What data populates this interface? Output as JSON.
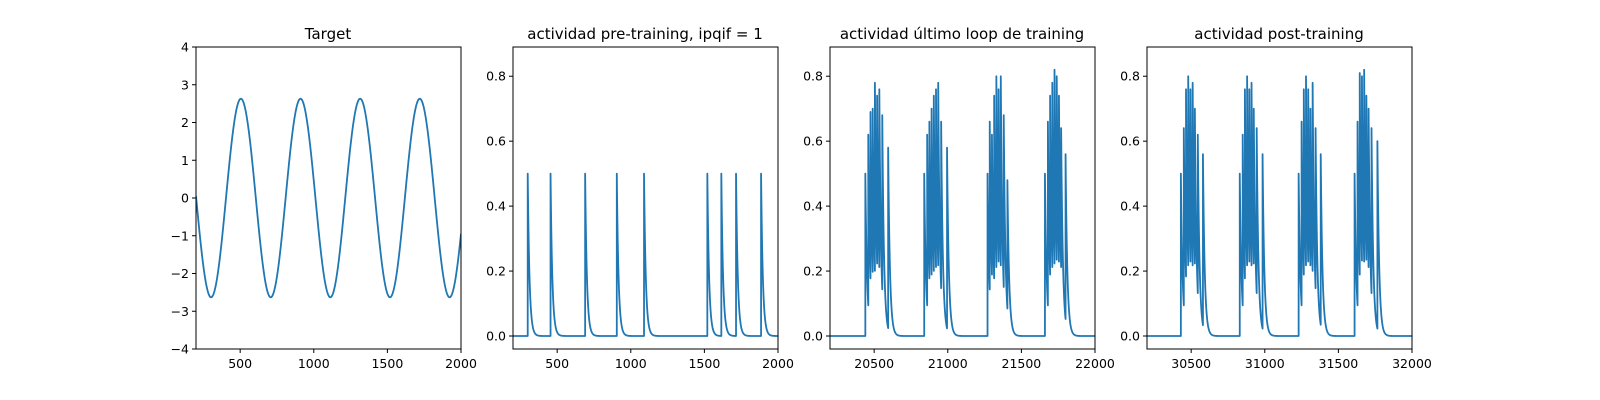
{
  "line_color": "#1f77b4",
  "chart_data": [
    {
      "type": "line",
      "title": "Target",
      "xlim": [
        200,
        2000
      ],
      "ylim": [
        -4,
        4
      ],
      "xticks": [
        500,
        1000,
        1500,
        2000
      ],
      "xtick_labels": [
        "500",
        "1000",
        "1500",
        "2000"
      ],
      "yticks": [
        -4,
        -3,
        -2,
        -1,
        0,
        1,
        2,
        3,
        4
      ],
      "ytick_labels": [
        "−4",
        "−3",
        "−2",
        "−1",
        "0",
        "1",
        "2",
        "3",
        "4"
      ],
      "series": [
        {
          "kind": "sine",
          "amplitude": 2.63,
          "period": 405,
          "first_peak_x": 505,
          "x_range": [
            200,
            2000
          ]
        }
      ]
    },
    {
      "type": "line",
      "title": "actividad pre-training, ipqif = 1",
      "xlim": [
        200,
        2000
      ],
      "ylim": [
        -0.04,
        0.89
      ],
      "xticks": [
        500,
        1000,
        1500,
        2000
      ],
      "xtick_labels": [
        "500",
        "1000",
        "1500",
        "2000"
      ],
      "yticks": [
        0.0,
        0.2,
        0.4,
        0.6,
        0.8
      ],
      "ytick_labels": [
        "0.0",
        "0.2",
        "0.4",
        "0.6",
        "0.8"
      ],
      "series": [
        {
          "kind": "spike_train",
          "decay": 12,
          "x_range": [
            200,
            2000
          ],
          "spikes": [
            {
              "x": 300,
              "h": 0.5
            },
            {
              "x": 455,
              "h": 0.5
            },
            {
              "x": 690,
              "h": 0.5
            },
            {
              "x": 905,
              "h": 0.5
            },
            {
              "x": 1090,
              "h": 0.5
            },
            {
              "x": 1520,
              "h": 0.5
            },
            {
              "x": 1615,
              "h": 0.5
            },
            {
              "x": 1715,
              "h": 0.5
            },
            {
              "x": 1885,
              "h": 0.5
            }
          ]
        }
      ]
    },
    {
      "type": "line",
      "title": "actividad último loop de training",
      "xlim": [
        20200,
        22000
      ],
      "ylim": [
        -0.04,
        0.89
      ],
      "xticks": [
        20500,
        21000,
        21500,
        22000
      ],
      "xtick_labels": [
        "20500",
        "21000",
        "21500",
        "22000"
      ],
      "yticks": [
        0.0,
        0.2,
        0.4,
        0.6,
        0.8
      ],
      "ytick_labels": [
        "0.0",
        "0.2",
        "0.4",
        "0.6",
        "0.8"
      ],
      "series": [
        {
          "kind": "spike_train",
          "decay": 12,
          "x_range": [
            20200,
            22000
          ],
          "spikes": [
            {
              "x": 20440,
              "h": 0.5
            },
            {
              "x": 20460,
              "h": 0.62
            },
            {
              "x": 20475,
              "h": 0.69
            },
            {
              "x": 20490,
              "h": 0.7
            },
            {
              "x": 20505,
              "h": 0.78
            },
            {
              "x": 20520,
              "h": 0.74
            },
            {
              "x": 20535,
              "h": 0.76
            },
            {
              "x": 20555,
              "h": 0.68
            },
            {
              "x": 20595,
              "h": 0.58
            },
            {
              "x": 20840,
              "h": 0.5
            },
            {
              "x": 20860,
              "h": 0.62
            },
            {
              "x": 20875,
              "h": 0.66
            },
            {
              "x": 20890,
              "h": 0.7
            },
            {
              "x": 20905,
              "h": 0.74
            },
            {
              "x": 20920,
              "h": 0.76
            },
            {
              "x": 20935,
              "h": 0.78
            },
            {
              "x": 20955,
              "h": 0.66
            },
            {
              "x": 20995,
              "h": 0.58
            },
            {
              "x": 21270,
              "h": 0.5
            },
            {
              "x": 21285,
              "h": 0.66
            },
            {
              "x": 21300,
              "h": 0.62
            },
            {
              "x": 21315,
              "h": 0.74
            },
            {
              "x": 21330,
              "h": 0.8
            },
            {
              "x": 21345,
              "h": 0.76
            },
            {
              "x": 21360,
              "h": 0.8
            },
            {
              "x": 21380,
              "h": 0.68
            },
            {
              "x": 21405,
              "h": 0.48
            },
            {
              "x": 21660,
              "h": 0.5
            },
            {
              "x": 21680,
              "h": 0.66
            },
            {
              "x": 21695,
              "h": 0.74
            },
            {
              "x": 21710,
              "h": 0.78
            },
            {
              "x": 21725,
              "h": 0.82
            },
            {
              "x": 21740,
              "h": 0.8
            },
            {
              "x": 21755,
              "h": 0.74
            },
            {
              "x": 21770,
              "h": 0.64
            },
            {
              "x": 21800,
              "h": 0.56
            }
          ]
        }
      ]
    },
    {
      "type": "line",
      "title": "actividad post-training",
      "xlim": [
        30200,
        32000
      ],
      "ylim": [
        -0.04,
        0.89
      ],
      "xticks": [
        30500,
        31000,
        31500,
        32000
      ],
      "xtick_labels": [
        "30500",
        "31000",
        "31500",
        "32000"
      ],
      "yticks": [
        0.0,
        0.2,
        0.4,
        0.6,
        0.8
      ],
      "ytick_labels": [
        "0.0",
        "0.2",
        "0.4",
        "0.6",
        "0.8"
      ],
      "series": [
        {
          "kind": "spike_train",
          "decay": 12,
          "x_range": [
            30200,
            32000
          ],
          "spikes": [
            {
              "x": 30430,
              "h": 0.5
            },
            {
              "x": 30450,
              "h": 0.64
            },
            {
              "x": 30465,
              "h": 0.76
            },
            {
              "x": 30480,
              "h": 0.8
            },
            {
              "x": 30495,
              "h": 0.76
            },
            {
              "x": 30510,
              "h": 0.78
            },
            {
              "x": 30525,
              "h": 0.7
            },
            {
              "x": 30545,
              "h": 0.62
            },
            {
              "x": 30580,
              "h": 0.56
            },
            {
              "x": 30830,
              "h": 0.5
            },
            {
              "x": 30850,
              "h": 0.62
            },
            {
              "x": 30865,
              "h": 0.76
            },
            {
              "x": 30880,
              "h": 0.8
            },
            {
              "x": 30895,
              "h": 0.76
            },
            {
              "x": 30910,
              "h": 0.78
            },
            {
              "x": 30925,
              "h": 0.7
            },
            {
              "x": 30945,
              "h": 0.64
            },
            {
              "x": 30985,
              "h": 0.56
            },
            {
              "x": 31230,
              "h": 0.5
            },
            {
              "x": 31250,
              "h": 0.66
            },
            {
              "x": 31265,
              "h": 0.76
            },
            {
              "x": 31280,
              "h": 0.8
            },
            {
              "x": 31295,
              "h": 0.76
            },
            {
              "x": 31310,
              "h": 0.7
            },
            {
              "x": 31325,
              "h": 0.78
            },
            {
              "x": 31345,
              "h": 0.64
            },
            {
              "x": 31380,
              "h": 0.56
            },
            {
              "x": 31610,
              "h": 0.5
            },
            {
              "x": 31630,
              "h": 0.66
            },
            {
              "x": 31645,
              "h": 0.81
            },
            {
              "x": 31660,
              "h": 0.8
            },
            {
              "x": 31675,
              "h": 0.82
            },
            {
              "x": 31690,
              "h": 0.74
            },
            {
              "x": 31705,
              "h": 0.7
            },
            {
              "x": 31725,
              "h": 0.64
            },
            {
              "x": 31765,
              "h": 0.6
            }
          ]
        }
      ]
    }
  ]
}
